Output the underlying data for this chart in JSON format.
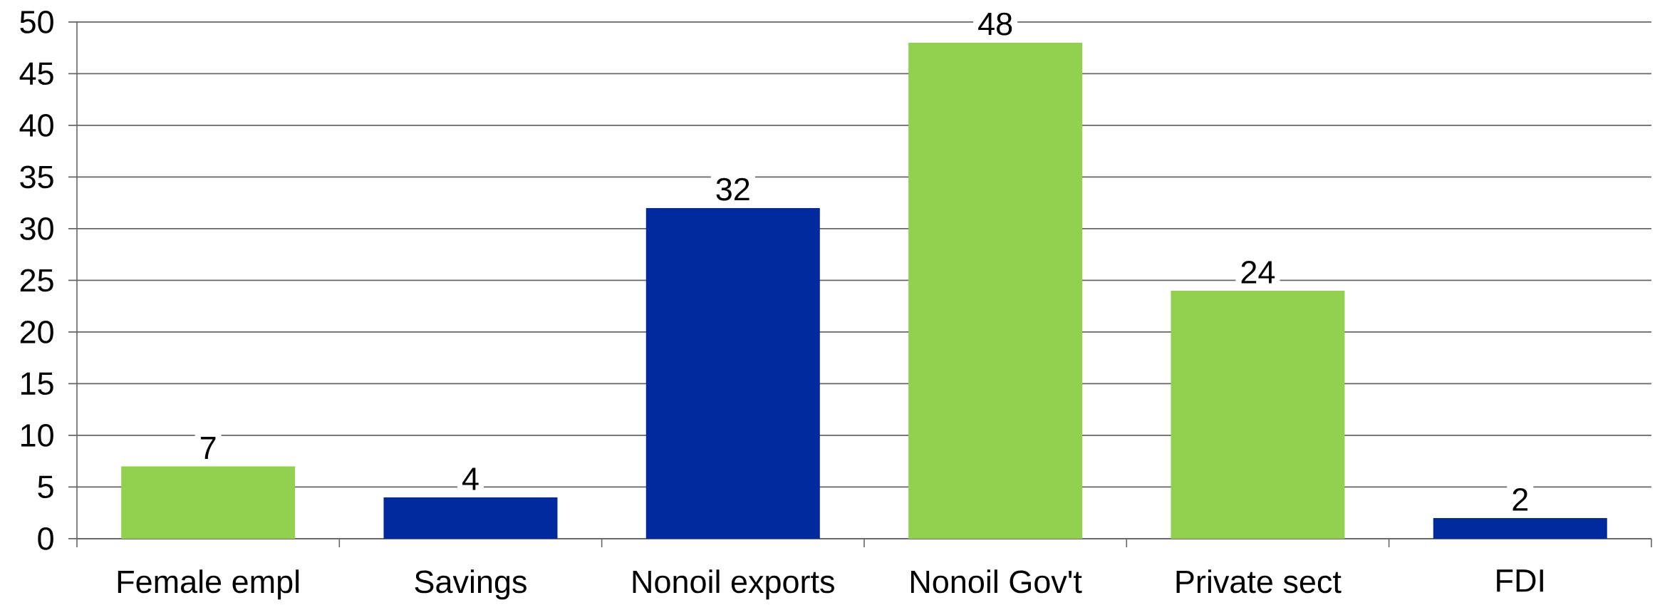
{
  "chart_data": {
    "type": "bar",
    "categories": [
      "Female empl",
      "Savings",
      "Nonoil exports",
      "Nonoil Gov't",
      "Private sect",
      "FDI"
    ],
    "values": [
      7,
      4,
      32,
      48,
      24,
      2
    ],
    "colors": [
      "#92d050",
      "#002a9e",
      "#002a9e",
      "#92d050",
      "#92d050",
      "#002a9e"
    ],
    "ylim": [
      0,
      50
    ],
    "yticks": [
      0,
      5,
      10,
      15,
      20,
      25,
      30,
      35,
      40,
      45,
      50
    ],
    "grid": "y",
    "data_labels": true
  }
}
